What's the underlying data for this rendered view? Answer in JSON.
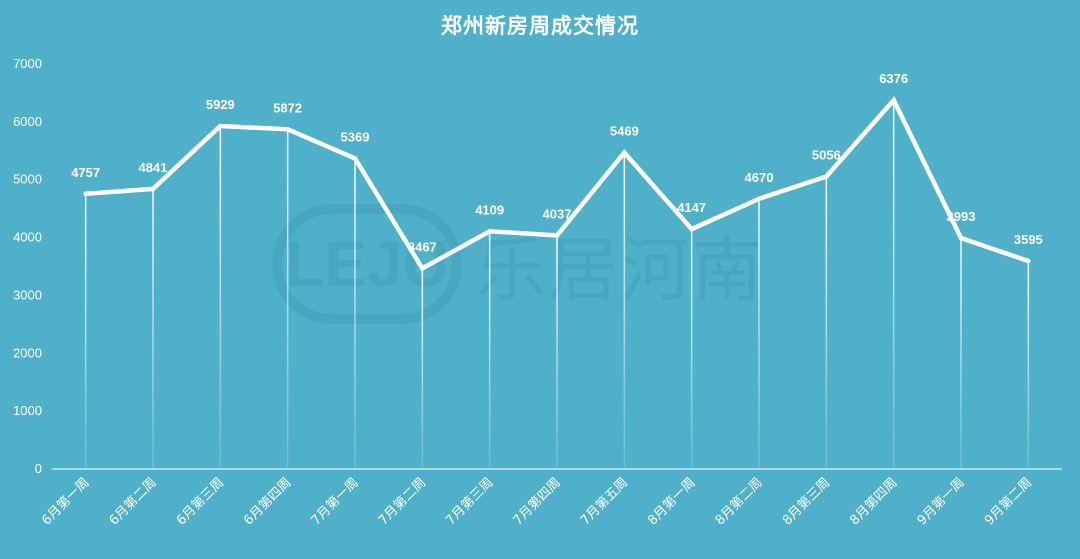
{
  "chart_data": {
    "type": "line",
    "title": "郑州新房周成交情况",
    "xlabel": "",
    "ylabel": "",
    "categories": [
      "6月第一周",
      "6月第二周",
      "6月第三周",
      "6月第四周",
      "7月第一周",
      "7月第二周",
      "7月第三周",
      "7月第四周",
      "7月第五周",
      "8月第一周",
      "8月第二周",
      "8月第三周",
      "8月第四周",
      "9月第一周",
      "9月第二周"
    ],
    "values": [
      4757,
      4841,
      5929,
      5872,
      5369,
      3467,
      4109,
      4037,
      5469,
      4147,
      4670,
      5056,
      6376,
      3993,
      3595
    ],
    "ylim": [
      0,
      7000
    ],
    "yticks": [
      0,
      1000,
      2000,
      3000,
      4000,
      5000,
      6000,
      7000
    ],
    "grid": false,
    "drop_lines": true,
    "data_labels": true,
    "colors": {
      "background": "#4fb0c9",
      "line": "#ffffff",
      "text": "#ffffff"
    }
  },
  "watermark": {
    "logo_text": "LEJU",
    "brand_text": "乐居河南"
  }
}
